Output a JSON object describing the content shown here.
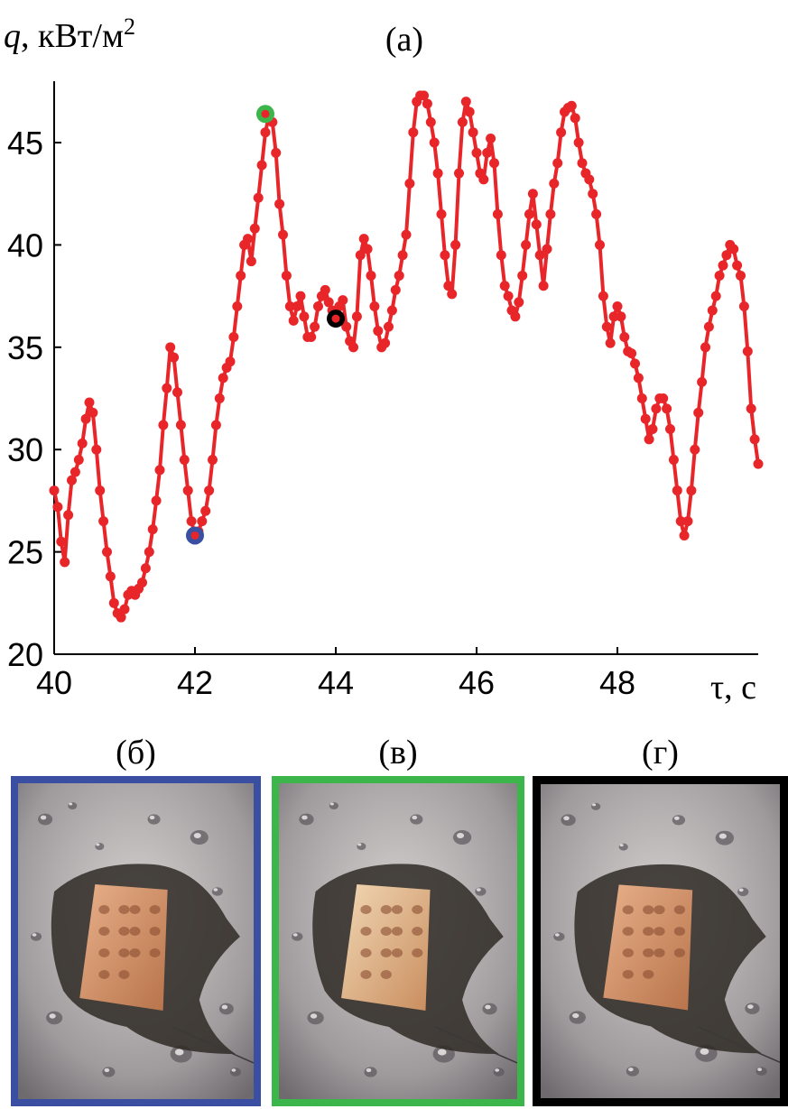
{
  "chart_data": {
    "type": "line",
    "title": "(a)",
    "ylabel": "q, кВт/м",
    "ylabel_sup": "2",
    "xlabel": "τ, с",
    "xlim": [
      40,
      50
    ],
    "ylim": [
      20,
      48
    ],
    "xticks": [
      40,
      42,
      44,
      46,
      48
    ],
    "yticks": [
      20,
      25,
      30,
      35,
      40,
      45
    ],
    "grid": false,
    "series": [
      {
        "color": "#e8262a",
        "x": [
          40.0,
          40.05,
          40.1,
          40.15,
          40.2,
          40.25,
          40.3,
          40.35,
          40.4,
          40.45,
          40.5,
          40.55,
          40.6,
          40.65,
          40.7,
          40.75,
          40.8,
          40.85,
          40.9,
          40.95,
          41.0,
          41.05,
          41.1,
          41.15,
          41.2,
          41.25,
          41.3,
          41.35,
          41.4,
          41.45,
          41.5,
          41.55,
          41.6,
          41.65,
          41.7,
          41.75,
          41.8,
          41.85,
          41.9,
          41.95,
          42.0,
          42.05,
          42.1,
          42.15,
          42.2,
          42.25,
          42.3,
          42.35,
          42.4,
          42.45,
          42.5,
          42.55,
          42.6,
          42.65,
          42.7,
          42.75,
          42.8,
          42.85,
          42.9,
          42.95,
          43.0,
          43.05,
          43.1,
          43.15,
          43.2,
          43.25,
          43.3,
          43.35,
          43.4,
          43.45,
          43.5,
          43.55,
          43.6,
          43.65,
          43.7,
          43.75,
          43.8,
          43.85,
          43.9,
          43.95,
          44.0,
          44.05,
          44.1,
          44.15,
          44.2,
          44.25,
          44.3,
          44.35,
          44.4,
          44.45,
          44.5,
          44.55,
          44.6,
          44.65,
          44.7,
          44.75,
          44.8,
          44.85,
          44.9,
          44.95,
          45.0,
          45.05,
          45.1,
          45.15,
          45.2,
          45.25,
          45.3,
          45.35,
          45.4,
          45.45,
          45.5,
          45.55,
          45.6,
          45.65,
          45.7,
          45.75,
          45.8,
          45.85,
          45.9,
          45.95,
          46.0,
          46.05,
          46.1,
          46.15,
          46.2,
          46.25,
          46.3,
          46.35,
          46.4,
          46.45,
          46.5,
          46.55,
          46.6,
          46.65,
          46.7,
          46.75,
          46.8,
          46.85,
          46.9,
          46.95,
          47.0,
          47.05,
          47.1,
          47.15,
          47.2,
          47.25,
          47.3,
          47.35,
          47.4,
          47.45,
          47.5,
          47.55,
          47.6,
          47.65,
          47.7,
          47.75,
          47.8,
          47.85,
          47.9,
          47.95,
          48.0,
          48.05,
          48.1,
          48.15,
          48.2,
          48.25,
          48.3,
          48.35,
          48.4,
          48.45,
          48.5,
          48.55,
          48.6,
          48.65,
          48.7,
          48.75,
          48.8,
          48.85,
          48.9,
          48.95,
          49.0,
          49.05,
          49.1,
          49.15,
          49.2,
          49.25,
          49.3,
          49.35,
          49.4,
          49.45,
          49.5,
          49.55,
          49.6,
          49.65,
          49.7,
          49.75,
          49.8,
          49.85,
          49.9,
          49.95,
          50.0
        ],
        "y": [
          28.0,
          27.2,
          25.5,
          24.5,
          26.8,
          28.5,
          28.9,
          29.5,
          30.3,
          31.5,
          32.3,
          31.8,
          30.0,
          28.0,
          26.5,
          25.0,
          23.8,
          22.5,
          22.0,
          21.8,
          22.2,
          22.9,
          23.1,
          22.9,
          23.2,
          23.5,
          24.2,
          25.0,
          26.1,
          27.5,
          29.0,
          31.2,
          33.0,
          35.0,
          34.5,
          32.8,
          31.2,
          29.5,
          28.0,
          26.5,
          25.8,
          26.0,
          26.5,
          27.0,
          28.0,
          29.5,
          31.2,
          32.5,
          33.5,
          34.0,
          34.3,
          35.5,
          37.0,
          38.5,
          40.0,
          40.3,
          39.2,
          40.8,
          42.3,
          43.9,
          45.5,
          46.3,
          46.0,
          44.5,
          42.0,
          40.5,
          38.5,
          37.0,
          36.3,
          37.0,
          37.5,
          36.5,
          35.5,
          35.5,
          36.0,
          37.0,
          37.5,
          37.8,
          37.2,
          36.8,
          36.5,
          37.0,
          37.3,
          36.0,
          35.3,
          35.0,
          36.5,
          39.5,
          40.3,
          39.8,
          38.5,
          37.0,
          35.8,
          35.0,
          35.2,
          36.0,
          36.8,
          37.8,
          38.5,
          39.5,
          40.5,
          43.0,
          45.5,
          47.0,
          47.3,
          47.3,
          46.9,
          46.0,
          45.0,
          43.5,
          41.5,
          39.5,
          38.0,
          37.6,
          40.0,
          43.5,
          46.0,
          47.0,
          46.5,
          45.5,
          44.5,
          43.5,
          43.2,
          44.5,
          45.2,
          44.0,
          41.5,
          39.5,
          38.0,
          37.5,
          36.8,
          36.5,
          37.2,
          38.5,
          40.0,
          41.5,
          42.5,
          41.0,
          39.5,
          38.0,
          39.8,
          41.5,
          43.0,
          44.0,
          45.5,
          46.5,
          46.7,
          46.8,
          46.2,
          45.0,
          44.0,
          43.5,
          43.2,
          42.5,
          41.5,
          40.0,
          37.5,
          36.0,
          35.2,
          36.5,
          37.0,
          36.5,
          35.5,
          34.8,
          34.7,
          34.2,
          33.5,
          32.5,
          31.5,
          30.5,
          31.0,
          32.0,
          32.5,
          32.5,
          32.0,
          31.0,
          29.5,
          28.0,
          26.5,
          25.8,
          26.5,
          28.0,
          30.0,
          31.8,
          33.3,
          35.0,
          36.0,
          36.8,
          37.5,
          38.5,
          39.0,
          39.5,
          40.0,
          39.8,
          39.0,
          38.5,
          37.0,
          34.8,
          32.0,
          30.5,
          29.3
        ]
      }
    ],
    "highlighted_points": [
      {
        "x": 42.0,
        "y": 25.8,
        "ring_color": "#3a4fa1"
      },
      {
        "x": 43.0,
        "y": 46.4,
        "ring_color": "#3cb54a"
      },
      {
        "x": 44.0,
        "y": 36.4,
        "ring_color": "#000000"
      }
    ]
  },
  "photos": [
    {
      "label": "(б)",
      "frame_color": "#3a4fa1"
    },
    {
      "label": "(в)",
      "frame_color": "#3cb54a"
    },
    {
      "label": "(г)",
      "frame_color": "#000000"
    }
  ]
}
